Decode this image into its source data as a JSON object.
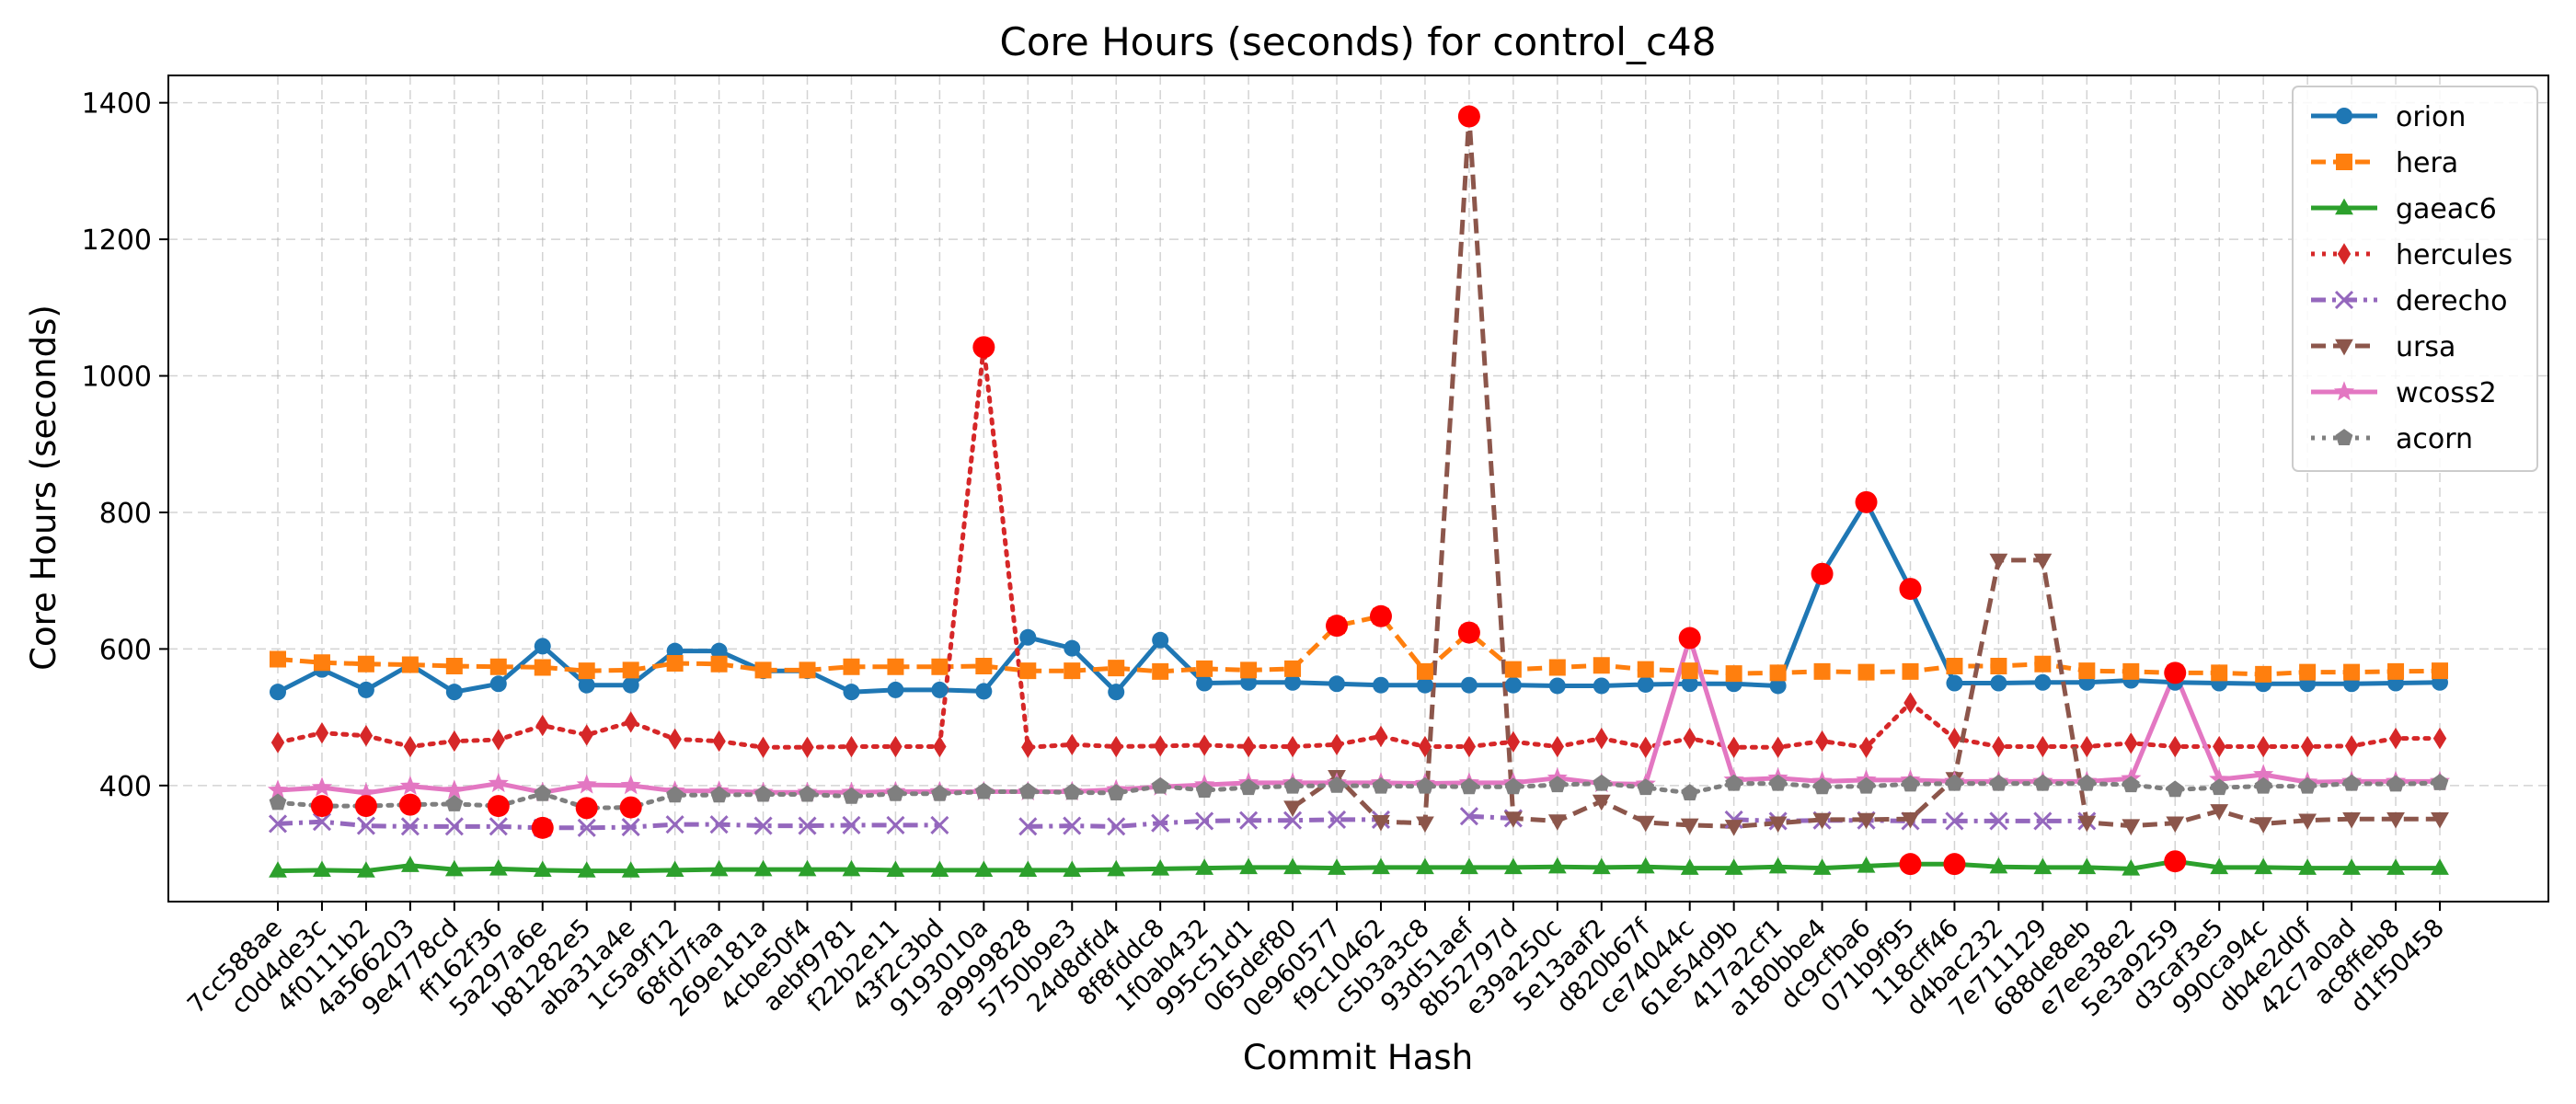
{
  "chart_data": {
    "type": "line",
    "title": "Core Hours (seconds) for control_c48",
    "xlabel": "Commit Hash",
    "ylabel": "Core Hours (seconds)",
    "ylim": [
      230,
      1440
    ],
    "yticks": [
      400,
      600,
      800,
      1000,
      1200,
      1400
    ],
    "grid": true,
    "legend_position": "top-right",
    "categories": [
      "7cc588ae",
      "c0d4de3c",
      "4f0111b2",
      "4a566203",
      "9e4778cd",
      "ff162f36",
      "5a297a6e",
      "b81282e5",
      "aba31a4e",
      "1c5a9f12",
      "68fd7faa",
      "269e181a",
      "4cbe50f4",
      "aebf9781",
      "f22b2e11",
      "43f2c3bd",
      "9193010a",
      "a9999828",
      "5750b9e3",
      "24d8dfd4",
      "8f8fddc8",
      "1f0ab432",
      "995c51d1",
      "065def80",
      "0e960577",
      "f9c10462",
      "c5b3a3c8",
      "93d51aef",
      "8b52797d",
      "e39a250c",
      "5e13aaf2",
      "d820b67f",
      "ce74044c",
      "61e54d9b",
      "417a2cf1",
      "a180bbe4",
      "dc9cfba6",
      "071b9f95",
      "118cff46",
      "d4bac232",
      "7e711129",
      "688de8eb",
      "e7ee38e2",
      "5e3a9259",
      "d3caf3e5",
      "990ca94c",
      "db4e2d0f",
      "42c7a0ad",
      "ac8ffeb8",
      "d1f50458"
    ],
    "series": [
      {
        "name": "orion",
        "color": "#1f77b4",
        "linestyle": "solid",
        "marker": "circle",
        "values": [
          537,
          570,
          540,
          577,
          537,
          549,
          604,
          547,
          547,
          597,
          597,
          568,
          568,
          537,
          540,
          540,
          538,
          617,
          601,
          537,
          613,
          550,
          551,
          551,
          549,
          547,
          547,
          547,
          547,
          546,
          546,
          548,
          549,
          549,
          546,
          710,
          815,
          688,
          550,
          550,
          551,
          551,
          554,
          551,
          550,
          549,
          549,
          549,
          550,
          551
        ]
      },
      {
        "name": "hera",
        "color": "#ff7f0e",
        "linestyle": "dashed",
        "marker": "square",
        "values": [
          585,
          580,
          578,
          577,
          575,
          574,
          573,
          568,
          569,
          579,
          578,
          569,
          569,
          574,
          574,
          574,
          575,
          568,
          568,
          572,
          567,
          571,
          569,
          571,
          634,
          648,
          567,
          624,
          570,
          573,
          576,
          570,
          568,
          564,
          565,
          567,
          566,
          567,
          575,
          575,
          578,
          568,
          567,
          565,
          565,
          563,
          566,
          566,
          567,
          568
        ]
      },
      {
        "name": "gaeac6",
        "color": "#2ca02c",
        "linestyle": "solid",
        "marker": "triangle-up",
        "values": [
          275,
          276,
          275,
          283,
          277,
          278,
          276,
          275,
          275,
          276,
          277,
          277,
          277,
          277,
          276,
          276,
          276,
          276,
          276,
          277,
          278,
          279,
          280,
          280,
          279,
          280,
          280,
          280,
          280,
          281,
          280,
          281,
          279,
          279,
          281,
          279,
          282,
          285,
          285,
          281,
          280,
          280,
          278,
          289,
          280,
          280,
          279,
          279,
          279,
          279
        ]
      },
      {
        "name": "hercules",
        "color": "#d62728",
        "linestyle": "dotted",
        "marker": "diamond",
        "values": [
          463,
          477,
          473,
          457,
          465,
          467,
          488,
          474,
          493,
          468,
          465,
          456,
          456,
          457,
          457,
          457,
          1042,
          456,
          460,
          457,
          458,
          459,
          457,
          457,
          460,
          472,
          457,
          457,
          464,
          457,
          469,
          456,
          469,
          456,
          456,
          465,
          456,
          521,
          469,
          457,
          457,
          457,
          462,
          457,
          457,
          457,
          457,
          458,
          469,
          469
        ]
      },
      {
        "name": "derecho",
        "color": "#9467bd",
        "linestyle": "dashdot",
        "marker": "x",
        "values": [
          344,
          347,
          341,
          340,
          340,
          340,
          338,
          338,
          339,
          343,
          343,
          341,
          341,
          342,
          342,
          342,
          null,
          340,
          341,
          340,
          345,
          348,
          349,
          349,
          350,
          350,
          null,
          355,
          352,
          null,
          null,
          null,
          null,
          350,
          348,
          349,
          349,
          348,
          348,
          348,
          348,
          348,
          null,
          null,
          null,
          null,
          null,
          null,
          null,
          null
        ]
      },
      {
        "name": "ursa",
        "color": "#8c564b",
        "linestyle": "dashed",
        "marker": "triangle-down",
        "values": [
          null,
          null,
          null,
          null,
          null,
          null,
          null,
          null,
          null,
          null,
          null,
          null,
          null,
          null,
          null,
          null,
          null,
          null,
          null,
          null,
          null,
          null,
          null,
          368,
          413,
          347,
          345,
          1380,
          352,
          348,
          377,
          346,
          342,
          340,
          345,
          350,
          350,
          351,
          410,
          730,
          730,
          346,
          341,
          345,
          363,
          344,
          349,
          351,
          351,
          351
        ]
      },
      {
        "name": "wcoss2",
        "color": "#e377c2",
        "linestyle": "solid",
        "marker": "star",
        "values": [
          393,
          397,
          389,
          399,
          393,
          403,
          390,
          401,
          400,
          392,
          392,
          390,
          390,
          390,
          391,
          391,
          391,
          391,
          391,
          394,
          398,
          401,
          404,
          404,
          404,
          404,
          403,
          404,
          404,
          411,
          403,
          402,
          616,
          408,
          411,
          406,
          408,
          408,
          406,
          406,
          406,
          406,
          410,
          565,
          409,
          416,
          405,
          406,
          406,
          406
        ]
      },
      {
        "name": "acorn",
        "color": "#7f7f7f",
        "linestyle": "dotted",
        "marker": "pentagon",
        "values": [
          375,
          370,
          370,
          372,
          373,
          370,
          388,
          367,
          368,
          386,
          386,
          387,
          387,
          384,
          388,
          388,
          391,
          391,
          390,
          389,
          399,
          393,
          397,
          399,
          400,
          399,
          399,
          398,
          398,
          401,
          403,
          397,
          389,
          403,
          403,
          398,
          399,
          402,
          403,
          403,
          403,
          403,
          401,
          394,
          397,
          399,
          399,
          403,
          402,
          404
        ]
      }
    ],
    "highlights": [
      {
        "series": "hercules",
        "index": 16
      },
      {
        "series": "orion",
        "index": 35
      },
      {
        "series": "orion",
        "index": 36
      },
      {
        "series": "orion",
        "index": 37
      },
      {
        "series": "hera",
        "index": 24
      },
      {
        "series": "hera",
        "index": 25
      },
      {
        "series": "hera",
        "index": 27
      },
      {
        "series": "ursa",
        "index": 27
      },
      {
        "series": "wcoss2",
        "index": 32
      },
      {
        "series": "wcoss2",
        "index": 43
      },
      {
        "series": "acorn",
        "index": 1
      },
      {
        "series": "acorn",
        "index": 2
      },
      {
        "series": "acorn",
        "index": 3
      },
      {
        "series": "acorn",
        "index": 5
      },
      {
        "series": "acorn",
        "index": 7
      },
      {
        "series": "acorn",
        "index": 8
      },
      {
        "series": "derecho",
        "index": 6
      },
      {
        "series": "gaeac6",
        "index": 37
      },
      {
        "series": "gaeac6",
        "index": 38
      },
      {
        "series": "gaeac6",
        "index": 43
      }
    ],
    "highlight_color": "#ff0000"
  }
}
